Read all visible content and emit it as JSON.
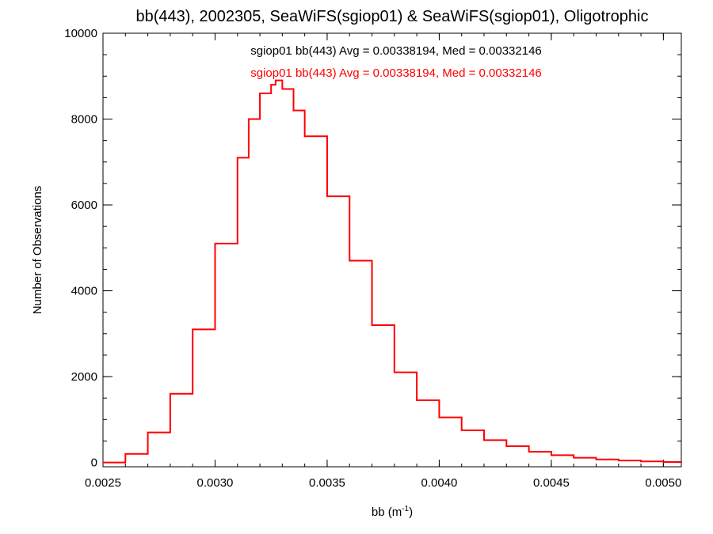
{
  "chart_data": {
    "type": "line",
    "title": "bb(443), 2002305, SeaWiFS(sgiop01) & SeaWiFS(sgiop01), Oligotrophic",
    "xlabel": "bb (m",
    "xlabel_sup": "-1",
    "xlabel_close": ")",
    "ylabel": "Number of Observations",
    "xlim": [
      0.0025,
      0.00508
    ],
    "ylim": [
      -100,
      10000
    ],
    "xticks": [
      0.0025,
      0.003,
      0.0035,
      0.004,
      0.0045,
      0.005
    ],
    "xtick_labels": [
      "0.0025",
      "0.0030",
      "0.0035",
      "0.0040",
      "0.0045",
      "0.0050"
    ],
    "yticks": [
      0,
      2000,
      4000,
      6000,
      8000,
      10000
    ],
    "ytick_labels": [
      "0",
      "2000",
      "4000",
      "6000",
      "8000",
      "10000"
    ],
    "annotations": [
      {
        "text": "sgiop01 bb(443) Avg = 0.00338194, Med = 0.00332146",
        "color": "#000000"
      },
      {
        "text": "sgiop01 bb(443) Avg = 0.00338194, Med = 0.00332146",
        "color": "#ff0000"
      }
    ],
    "series": [
      {
        "color": "#ff0000",
        "step": true,
        "x": [
          0.0025,
          0.0026,
          0.0027,
          0.0028,
          0.0029,
          0.003,
          0.0031,
          0.00315,
          0.0032,
          0.00325,
          0.00327,
          0.0033,
          0.00335,
          0.0034,
          0.0035,
          0.0036,
          0.0037,
          0.0038,
          0.0039,
          0.004,
          0.0041,
          0.0042,
          0.0043,
          0.0044,
          0.0045,
          0.0046,
          0.0047,
          0.0048,
          0.0049,
          0.005,
          0.00508
        ],
        "y": [
          0,
          200,
          700,
          1600,
          3100,
          5100,
          7100,
          8000,
          8600,
          8800,
          8900,
          8700,
          8200,
          7600,
          6200,
          4700,
          3200,
          2100,
          1450,
          1050,
          750,
          520,
          380,
          250,
          170,
          110,
          70,
          45,
          25,
          10,
          0
        ]
      }
    ]
  }
}
